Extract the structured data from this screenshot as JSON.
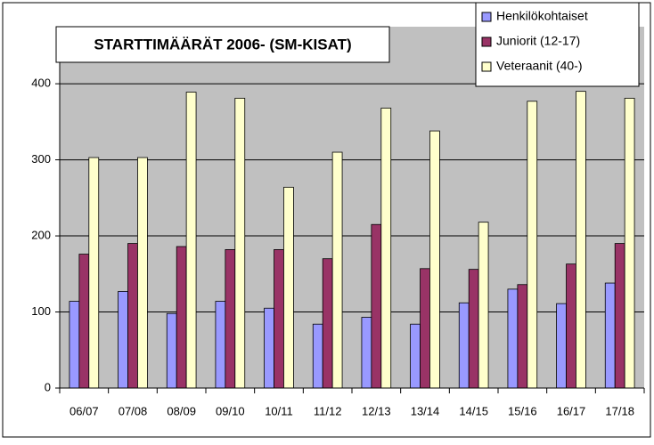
{
  "chart_data": {
    "type": "bar",
    "title": "STARTTIMÄÄRÄT 2006-  (SM-KISAT)",
    "categories": [
      "06/07",
      "07/08",
      "08/09",
      "09/10",
      "10/11",
      "11/12",
      "12/13",
      "13/14",
      "14/15",
      "15/16",
      "16/17",
      "17/18"
    ],
    "series": [
      {
        "name": "Henkilökohtaiset",
        "color": "#9999ff",
        "values": [
          114,
          127,
          98,
          114,
          105,
          84,
          93,
          84,
          112,
          130,
          111,
          138
        ]
      },
      {
        "name": "Juniorit (12-17)",
        "color": "#993366",
        "values": [
          176,
          190,
          186,
          182,
          182,
          170,
          215,
          157,
          156,
          136,
          163,
          190
        ]
      },
      {
        "name": "Veteraanit (40-)",
        "color": "#ffffcc",
        "values": [
          303,
          303,
          389,
          381,
          264,
          310,
          368,
          338,
          218,
          377,
          390,
          381
        ]
      }
    ],
    "ylim": [
      0,
      475
    ],
    "yticks": [
      0,
      100,
      200,
      300,
      400
    ],
    "grid": true,
    "legend": "top-right"
  }
}
